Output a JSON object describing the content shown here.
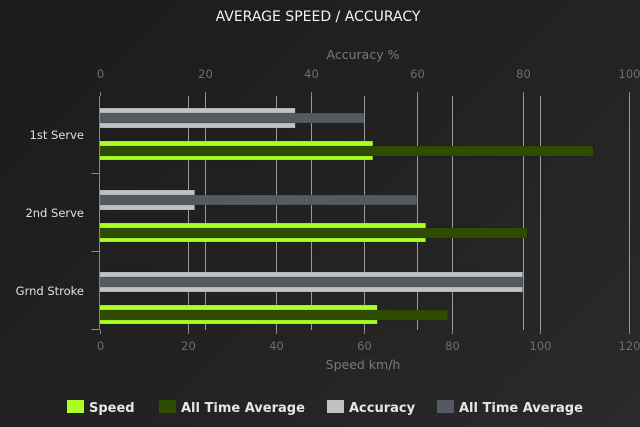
{
  "chart_data": {
    "type": "bar",
    "orientation": "horizontal",
    "title": "AVERAGE SPEED / ACCURACY",
    "categories": [
      "1st Serve",
      "2nd Serve",
      "Grnd Stroke"
    ],
    "top_axis": {
      "label": "Accuracy %",
      "range": [
        0,
        100
      ],
      "ticks": [
        "0",
        "20",
        "40",
        "60",
        "80",
        "100"
      ]
    },
    "bottom_axis": {
      "label": "Speed km/h",
      "range": [
        0,
        120
      ],
      "ticks": [
        "0",
        "20",
        "40",
        "60",
        "80",
        "100",
        "120"
      ]
    },
    "series": [
      {
        "name": "Speed",
        "axis": "bottom",
        "color": "#aaff22",
        "values": [
          62,
          74,
          63
        ]
      },
      {
        "name": "All Time Average",
        "axis": "bottom",
        "color": "#2f4d00",
        "values": [
          112,
          97,
          79
        ]
      },
      {
        "name": "Accuracy",
        "axis": "top",
        "color": "#c0c3c6",
        "values": [
          37,
          18,
          80
        ]
      },
      {
        "name": "All Time Average",
        "axis": "top",
        "color": "#555a61",
        "values": [
          50,
          60,
          80
        ]
      }
    ],
    "grid": true,
    "legend": "bottom"
  }
}
